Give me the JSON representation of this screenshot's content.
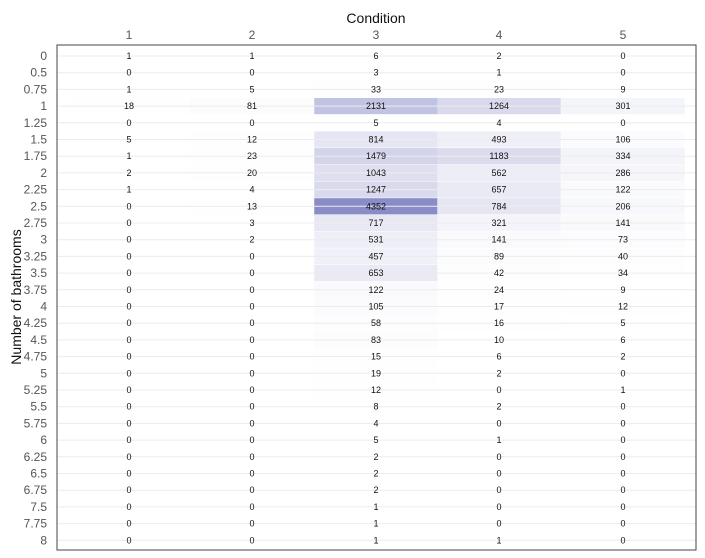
{
  "chart_data": {
    "type": "heatmap",
    "xlabel": "Condition",
    "ylabel": "Number of bathrooms",
    "columns": [
      "1",
      "2",
      "3",
      "4",
      "5"
    ],
    "rows": [
      "0",
      "0.5",
      "0.75",
      "1",
      "1.25",
      "1.5",
      "1.75",
      "2",
      "2.25",
      "2.5",
      "2.75",
      "3",
      "3.25",
      "3.5",
      "3.75",
      "4",
      "4.25",
      "4.5",
      "4.75",
      "5",
      "5.25",
      "5.5",
      "5.75",
      "6",
      "6.25",
      "6.5",
      "6.75",
      "7.5",
      "7.75",
      "8"
    ],
    "values": [
      [
        1,
        1,
        6,
        2,
        0
      ],
      [
        0,
        0,
        3,
        1,
        0
      ],
      [
        1,
        5,
        33,
        23,
        9
      ],
      [
        18,
        81,
        2131,
        1264,
        301
      ],
      [
        0,
        0,
        5,
        4,
        0
      ],
      [
        5,
        12,
        814,
        493,
        106
      ],
      [
        1,
        23,
        1479,
        1183,
        334
      ],
      [
        2,
        20,
        1043,
        562,
        286
      ],
      [
        1,
        4,
        1247,
        657,
        122
      ],
      [
        0,
        13,
        4352,
        784,
        206
      ],
      [
        0,
        3,
        717,
        321,
        141
      ],
      [
        0,
        2,
        531,
        141,
        73
      ],
      [
        0,
        0,
        457,
        89,
        40
      ],
      [
        0,
        0,
        653,
        42,
        34
      ],
      [
        0,
        0,
        122,
        24,
        9
      ],
      [
        0,
        0,
        105,
        17,
        12
      ],
      [
        0,
        0,
        58,
        16,
        5
      ],
      [
        0,
        0,
        83,
        10,
        6
      ],
      [
        0,
        0,
        15,
        6,
        2
      ],
      [
        0,
        0,
        19,
        2,
        0
      ],
      [
        0,
        0,
        12,
        0,
        1
      ],
      [
        0,
        0,
        8,
        2,
        0
      ],
      [
        0,
        0,
        4,
        0,
        0
      ],
      [
        0,
        0,
        5,
        1,
        0
      ],
      [
        0,
        0,
        2,
        0,
        0
      ],
      [
        0,
        0,
        2,
        0,
        0
      ],
      [
        0,
        0,
        2,
        0,
        0
      ],
      [
        0,
        0,
        1,
        0,
        0
      ],
      [
        0,
        0,
        1,
        0,
        0
      ],
      [
        0,
        0,
        1,
        1,
        0
      ]
    ],
    "color_max": "#8a8cc7",
    "legend": "none"
  }
}
